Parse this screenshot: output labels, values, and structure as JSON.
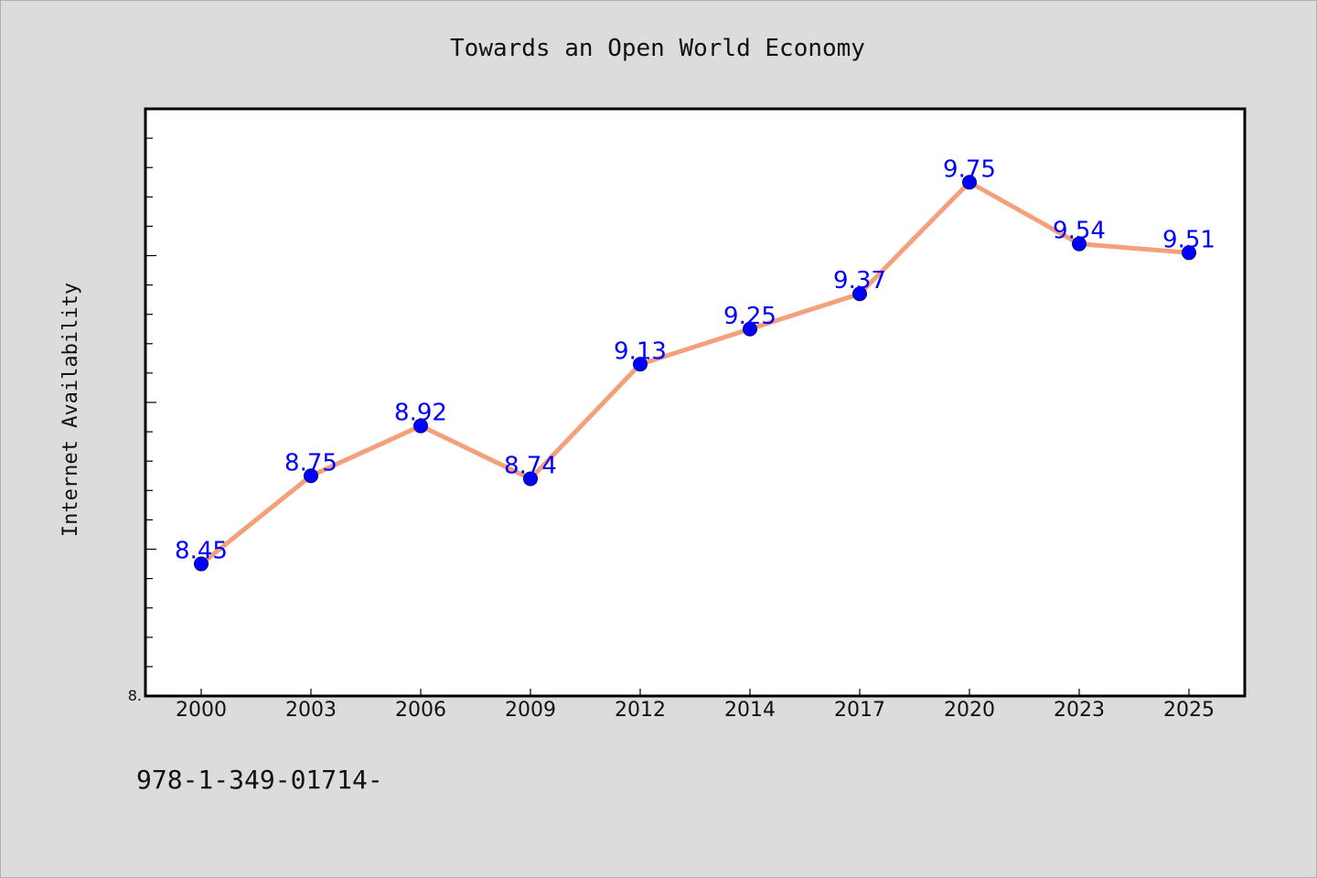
{
  "chart_data": {
    "type": "line",
    "title": "Towards an Open World Economy",
    "xlabel": "",
    "ylabel": "Internet Availability",
    "categories": [
      "2000",
      "2003",
      "2006",
      "2009",
      "2012",
      "2014",
      "2017",
      "2020",
      "2023",
      "2025"
    ],
    "series": [
      {
        "values": [
          8.45,
          8.75,
          8.92,
          8.74,
          9.13,
          9.25,
          9.37,
          9.75,
          9.54,
          9.51
        ]
      }
    ],
    "data_labels": [
      "8.45",
      "8.75",
      "8.92",
      "8.74",
      "9.13",
      "9.25",
      "9.37",
      "9.75",
      "9.54",
      "9.51"
    ],
    "y_tick_label": "8.",
    "ylim": [
      8.0,
      10.0
    ],
    "grid": false,
    "legend": "none",
    "line_color": "#f4a07a",
    "marker_color": "#0000ff",
    "label_color": "#0000ff"
  },
  "footer": {
    "isbn": "978-1-349-01714-"
  }
}
